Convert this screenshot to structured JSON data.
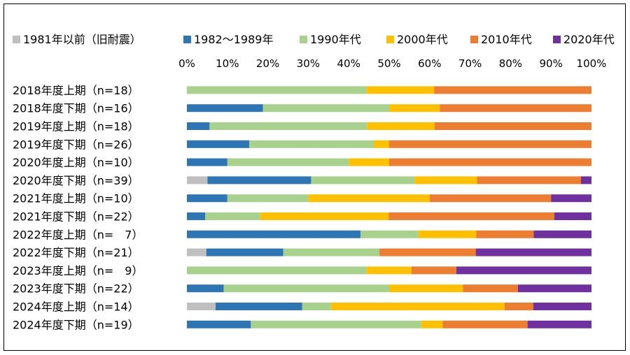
{
  "chart_data": {
    "type": "stacked-bar-100",
    "orientation": "horizontal",
    "legend_position": "top",
    "xlim": [
      0,
      100
    ],
    "x_ticks": [
      "0%",
      "10%",
      "20%",
      "30%",
      "40%",
      "50%",
      "60%",
      "70%",
      "80%",
      "90%",
      "100%"
    ],
    "categories": [
      "2018年度上期（n=18）",
      "2018年度下期（n=16）",
      "2019年度上期（n=18）",
      "2019年度下期（n=26）",
      "2020年度上期（n=10）",
      "2020年度下期（n=39）",
      "2021年度上期（n=10）",
      "2021年度下期（n=22）",
      "2022年度上期（n=　7）",
      "2022年度下期（n=21）",
      "2023年度上期（n=　9）",
      "2023年度下期（n=22）",
      "2024年度上期（n=14）",
      "2024年度下期（n=19）"
    ],
    "series": [
      {
        "name": "1981年以前（旧耐震）",
        "color": "#bfbfbf",
        "values": [
          0,
          0,
          0,
          0,
          0,
          5.1,
          0,
          0,
          0,
          4.8,
          0,
          0,
          7.1,
          0
        ]
      },
      {
        "name": "1982～1989年",
        "color": "#2e75b6",
        "values": [
          0,
          18.8,
          5.6,
          15.4,
          10.0,
          25.6,
          10.0,
          4.5,
          42.9,
          19.0,
          0,
          9.1,
          21.4,
          15.8
        ]
      },
      {
        "name": "1990年代",
        "color": "#a9d18e",
        "values": [
          44.4,
          31.2,
          38.9,
          30.8,
          30.0,
          25.6,
          20.0,
          13.6,
          14.3,
          23.8,
          44.4,
          40.9,
          7.1,
          42.1
        ]
      },
      {
        "name": "2000年代",
        "color": "#ffc000",
        "values": [
          16.7,
          12.5,
          16.7,
          3.8,
          10.0,
          15.4,
          30.0,
          31.8,
          14.3,
          0,
          11.1,
          18.2,
          42.9,
          5.3
        ]
      },
      {
        "name": "2010年代",
        "color": "#ed7d31",
        "values": [
          38.9,
          37.5,
          38.8,
          50.0,
          50.0,
          25.7,
          30.0,
          40.9,
          14.2,
          23.8,
          11.1,
          13.6,
          7.1,
          21.0
        ]
      },
      {
        "name": "2020年代",
        "color": "#7030a0",
        "values": [
          0,
          0,
          0,
          0,
          0,
          2.6,
          10.0,
          9.2,
          14.3,
          28.6,
          33.4,
          18.2,
          14.4,
          15.8
        ]
      }
    ]
  }
}
